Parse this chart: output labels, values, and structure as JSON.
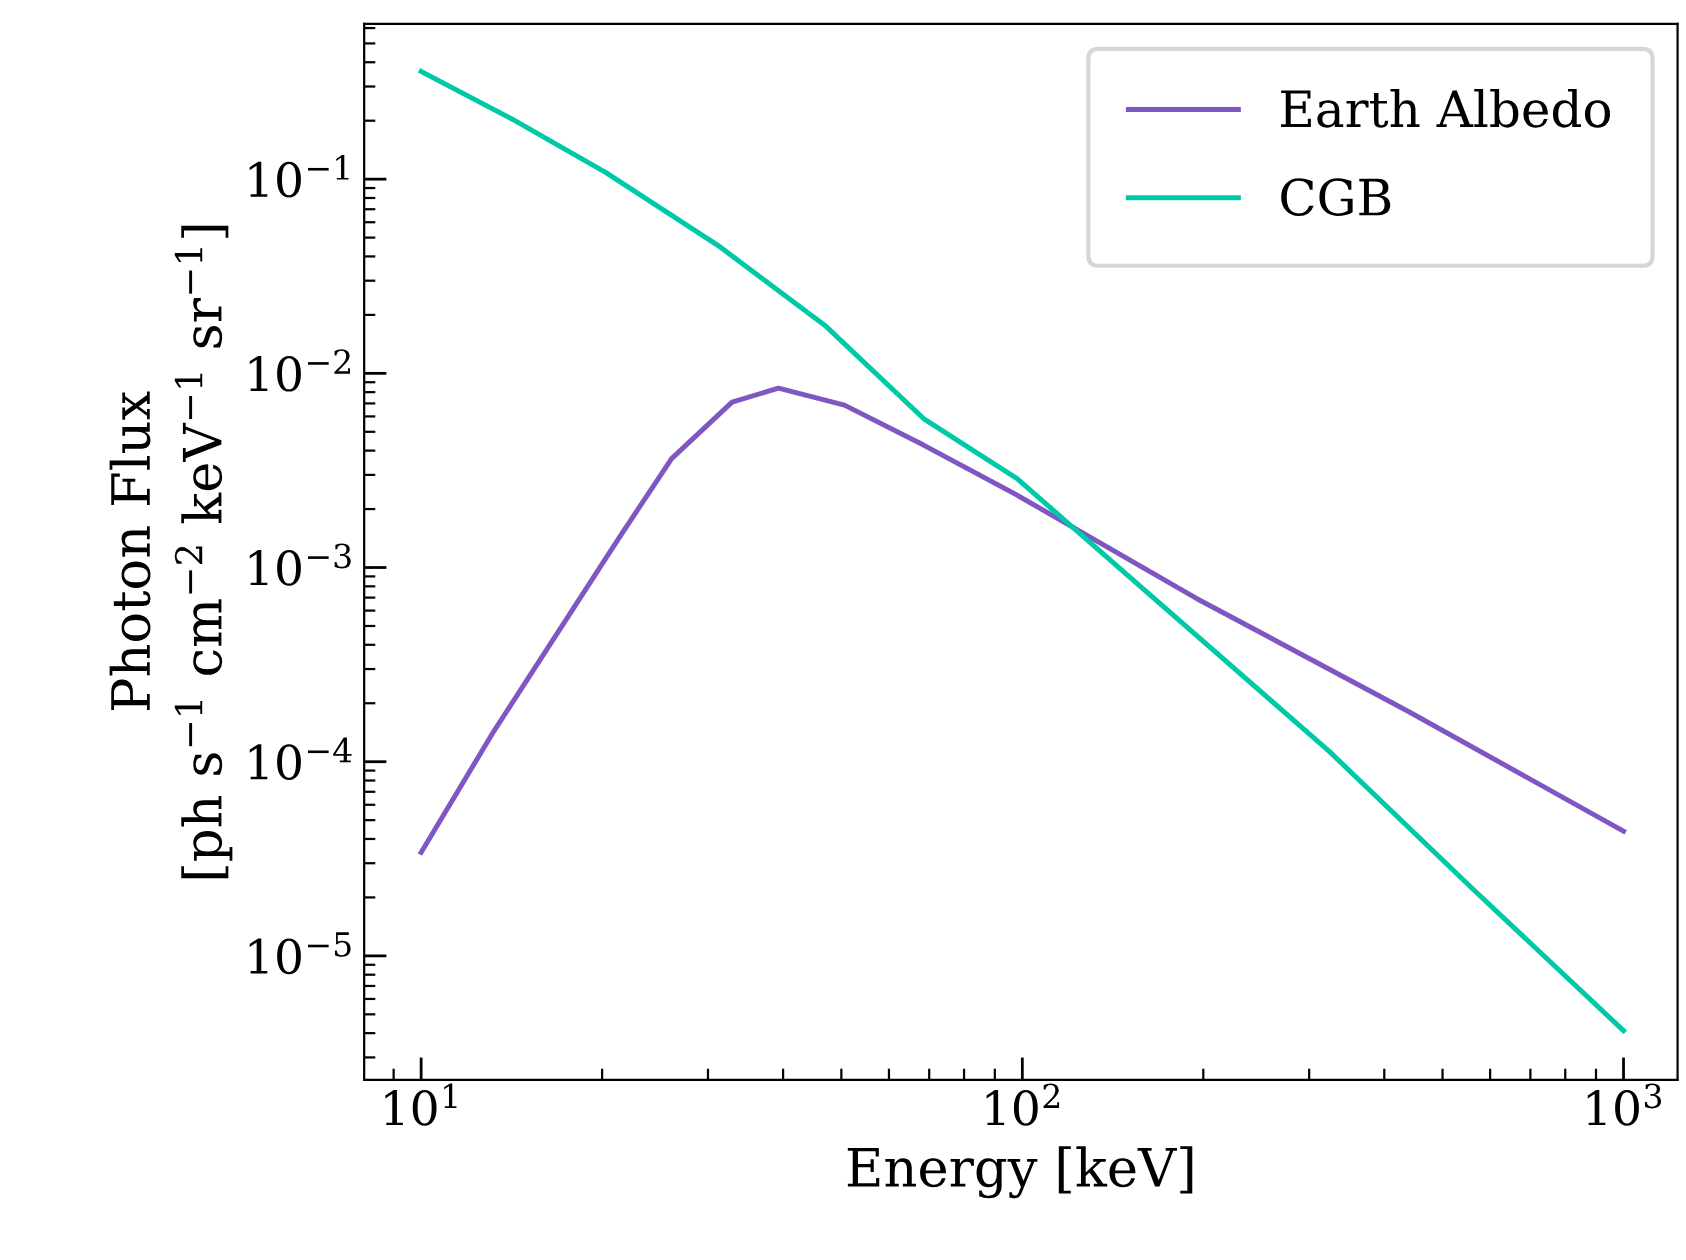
{
  "chart_data": {
    "type": "line",
    "xlabel": "Energy [keV]",
    "ylabel": "Photon Flux\n[ph s$^{−1}$ cm$^{−2}$ keV$^{−1}$ sr$^{−1}$]",
    "log": "xy",
    "xlim": [
      8.04,
      1230
    ],
    "ylim": [
      2.3e-06,
      0.63
    ],
    "xticks": [
      {
        "value": 10,
        "label": "10$^{1}$"
      },
      {
        "value": 100,
        "label": "10$^{2}$"
      },
      {
        "value": 1000,
        "label": "10$^{3}$"
      }
    ],
    "yticks": [
      {
        "value": 1e-05,
        "label": "10$^{−5}$"
      },
      {
        "value": 0.0001,
        "label": "10$^{−4}$"
      },
      {
        "value": 0.001,
        "label": "10$^{−3}$"
      },
      {
        "value": 0.01,
        "label": "10$^{−2}$"
      },
      {
        "value": 0.1,
        "label": "10$^{−1}$"
      }
    ],
    "grid": false,
    "legend": "top right",
    "marker": "none",
    "line_style": "solid",
    "series": [
      {
        "name": "Earth Albedo",
        "color": "#7e57c2",
        "x": [
          10,
          13.2,
          21.3,
          26.1,
          32.9,
          39.3,
          50.6,
          68.5,
          98,
          194.5,
          438,
          1000
        ],
        "values": [
          3.41e-05,
          0.000143,
          0.00141,
          0.00364,
          0.00711,
          0.00839,
          0.00686,
          0.00427,
          0.00236,
          0.000695,
          0.000182,
          4.39e-05
        ]
      },
      {
        "name": "CGB",
        "color": "#00c9a7",
        "x": [
          10,
          14.2,
          20.3,
          31.2,
          46.9,
          68.5,
          98,
          120,
          324,
          566,
          1000
        ],
        "values": [
          0.359,
          0.203,
          0.108,
          0.0455,
          0.0177,
          0.00585,
          0.00287,
          0.00166,
          0.000113,
          2.16e-05,
          4.12e-06
        ]
      }
    ]
  }
}
